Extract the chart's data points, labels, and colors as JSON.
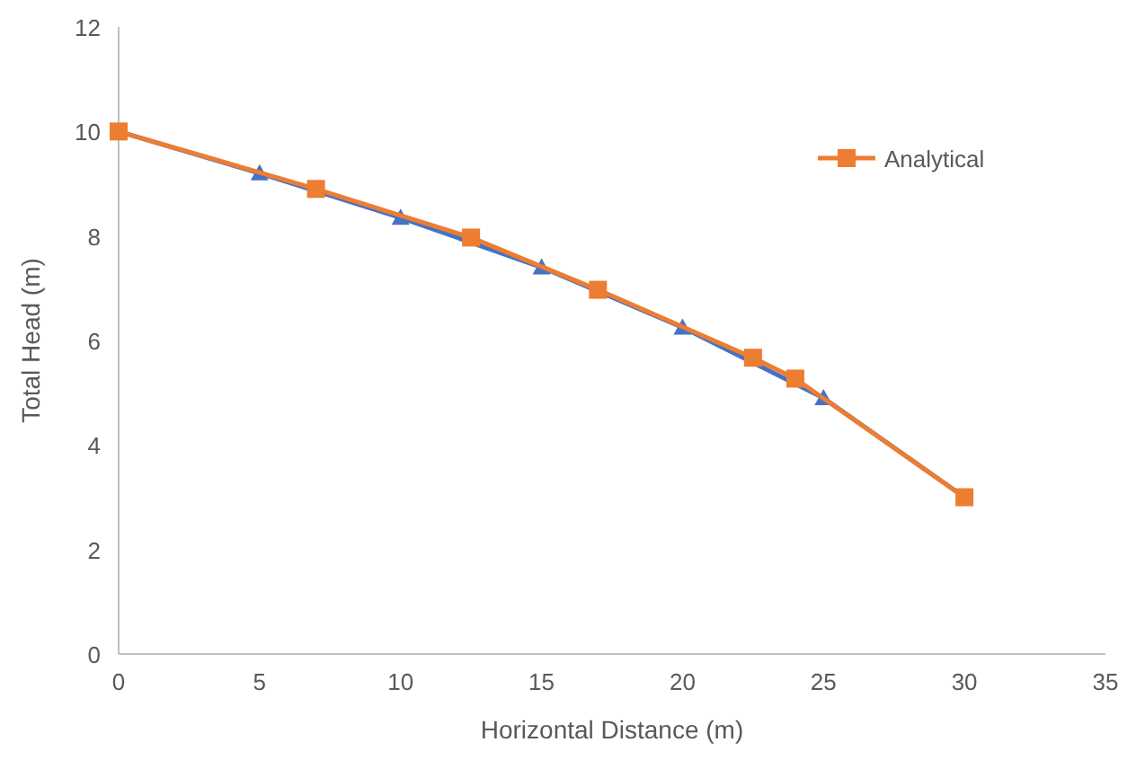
{
  "chart_data": {
    "type": "line",
    "xlabel": "Horizontal Distance (m)",
    "ylabel": "Total Head (m)",
    "xlim": [
      0,
      35
    ],
    "xticks": [
      0,
      5,
      10,
      15,
      20,
      25,
      30,
      35
    ],
    "ylim": [
      0,
      12
    ],
    "yticks": [
      0,
      2,
      4,
      6,
      8,
      10,
      12
    ],
    "grid": false,
    "legend": "top right",
    "series": [
      {
        "color": "#4472c4",
        "marker": "triangle",
        "x": [
          0,
          5,
          10,
          15,
          20,
          25,
          30
        ],
        "values": [
          10,
          9.2,
          8.35,
          7.4,
          6.25,
          4.9,
          3
        ]
      },
      {
        "name": "Analytical",
        "color": "#ed7d31",
        "marker": "square",
        "x": [
          0,
          7,
          12.5,
          17,
          22.5,
          24,
          30
        ],
        "values": [
          10,
          8.9,
          7.97,
          6.97,
          5.67,
          5.27,
          3
        ]
      }
    ]
  }
}
